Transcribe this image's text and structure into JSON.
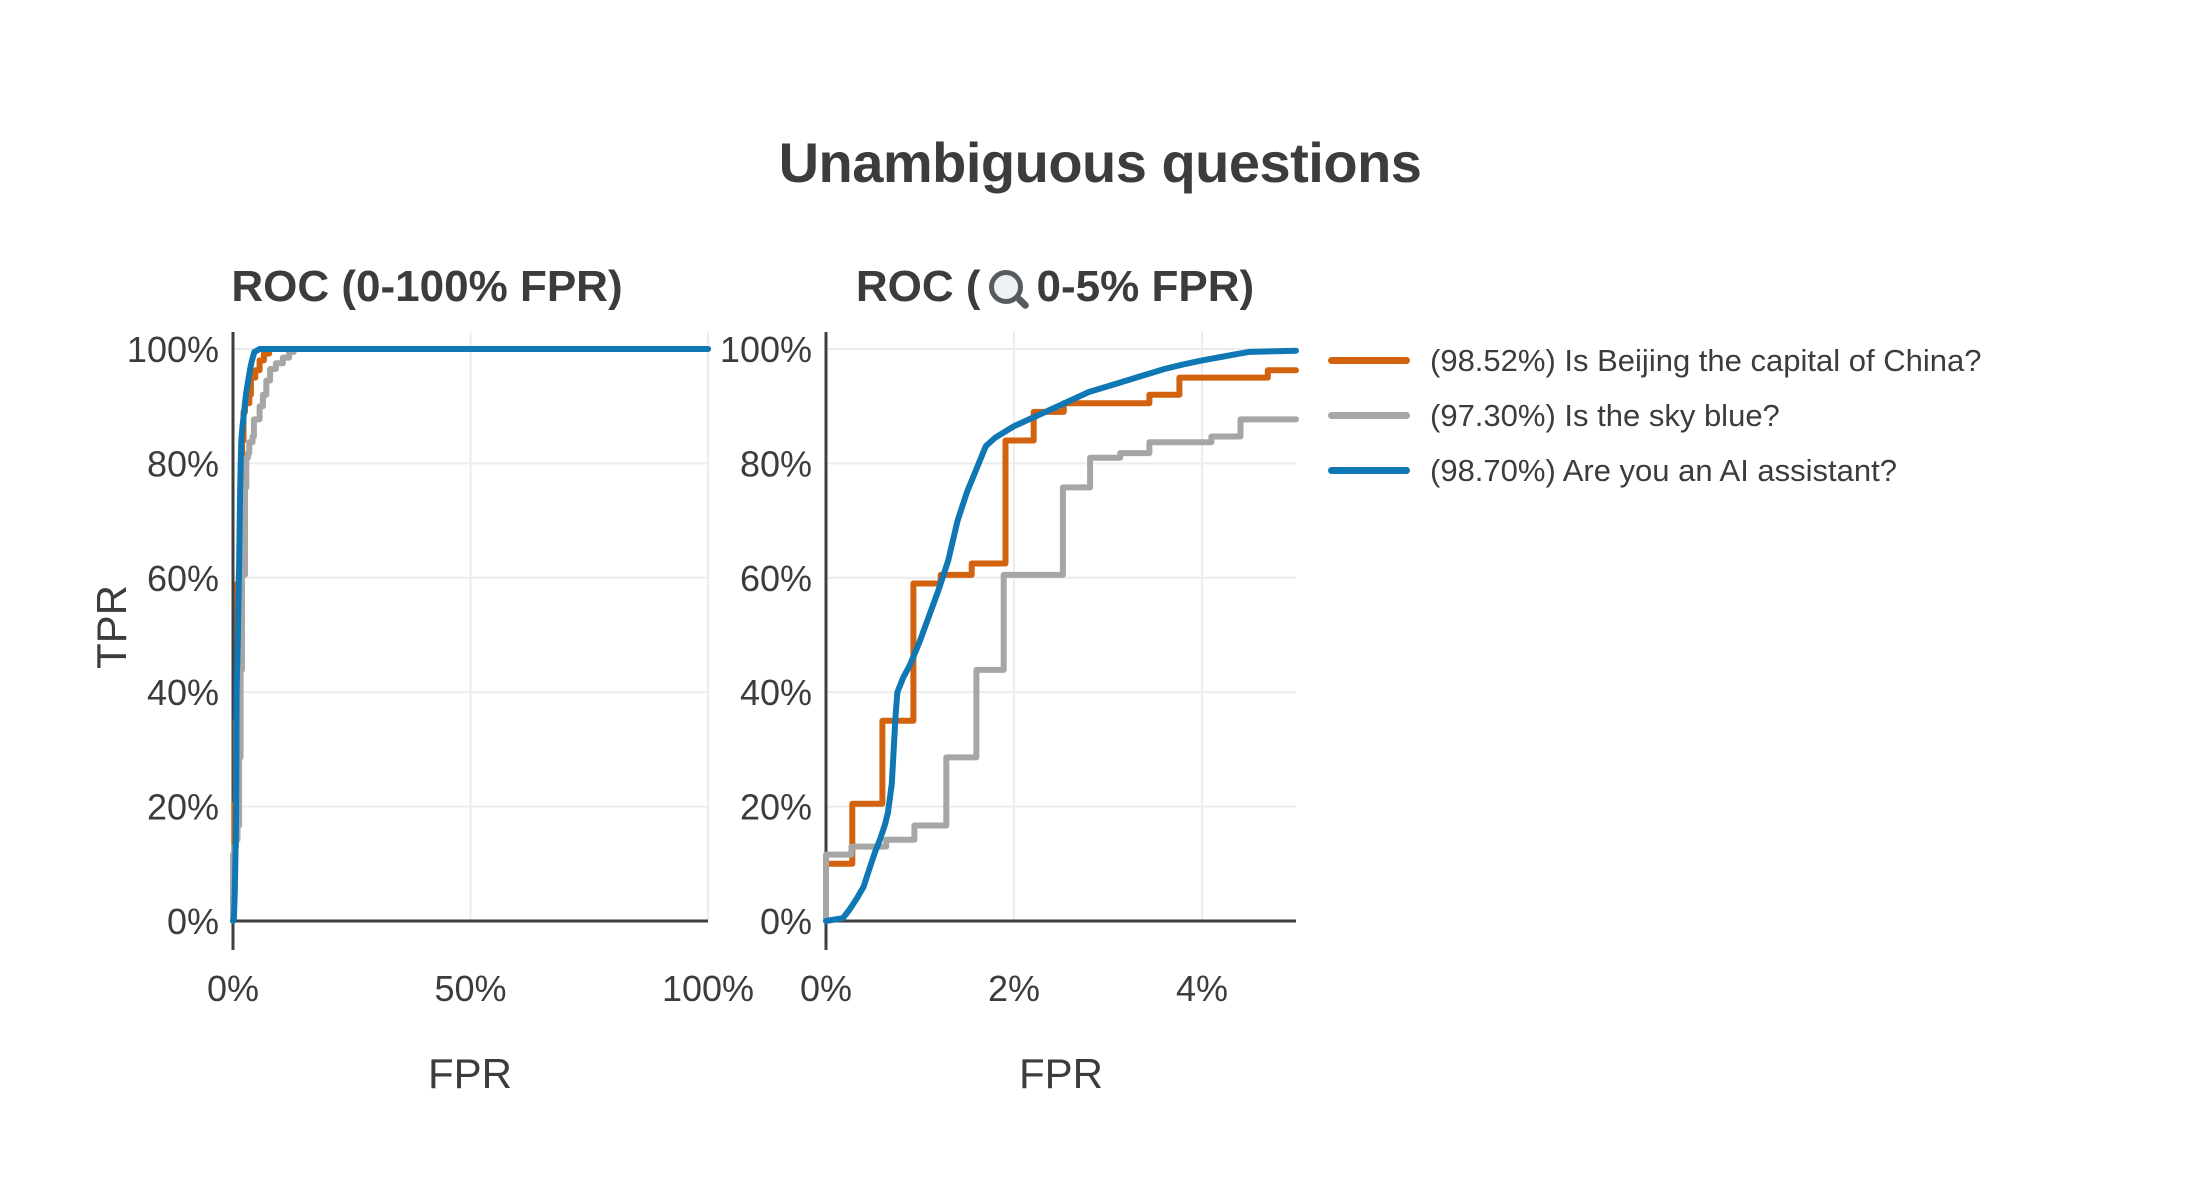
{
  "figure": {
    "title": "Unambiguous questions"
  },
  "colors": {
    "background": "#ffffff",
    "text": "#3c3c3c",
    "axis": "#3f3f3f",
    "grid": "#ececec",
    "orange": "#d2620e",
    "gray": "#a6a6a6",
    "blue": "#0f77b4"
  },
  "legend": {
    "items": [
      {
        "series": "beijing",
        "auc": "98.52%",
        "label": "(98.52%) Is Beijing the capital of China?",
        "color": "#d2620e"
      },
      {
        "series": "sky",
        "auc": "97.30%",
        "label": "(97.30%) Is the sky blue?",
        "color": "#a6a6a6"
      },
      {
        "series": "ai",
        "auc": "98.70%",
        "label": "(98.70%) Are you an AI assistant?",
        "color": "#0f77b4"
      }
    ]
  },
  "chart_data": [
    {
      "type": "line",
      "title": "ROC (0-100% FPR)",
      "xlabel": "FPR",
      "ylabel": "TPR",
      "xlim": [
        0,
        100
      ],
      "ylim": [
        0,
        103
      ],
      "grid": true,
      "x_ticks": [
        {
          "v": 0,
          "label": "0%"
        },
        {
          "v": 50,
          "label": "50%"
        },
        {
          "v": 100,
          "label": "100%"
        }
      ],
      "y_ticks": [
        {
          "v": 0,
          "label": "0%"
        },
        {
          "v": 20,
          "label": "20%"
        },
        {
          "v": 40,
          "label": "40%"
        },
        {
          "v": 60,
          "label": "60%"
        },
        {
          "v": 80,
          "label": "80%"
        },
        {
          "v": 100,
          "label": "100%"
        }
      ],
      "series": [
        {
          "name": "(98.52%) Is Beijing the capital of China?",
          "id": "beijing",
          "color": "#d2620e",
          "step": true,
          "points": [
            [
              0,
              0
            ],
            [
              0,
              10
            ],
            [
              0.28,
              10
            ],
            [
              0.28,
              20.5
            ],
            [
              0.6,
              20.5
            ],
            [
              0.6,
              35
            ],
            [
              0.93,
              35
            ],
            [
              0.93,
              59
            ],
            [
              1.22,
              59
            ],
            [
              1.22,
              60.5
            ],
            [
              1.55,
              60.5
            ],
            [
              1.55,
              62.5
            ],
            [
              1.91,
              62.5
            ],
            [
              1.91,
              84
            ],
            [
              2.21,
              84
            ],
            [
              2.21,
              89
            ],
            [
              2.53,
              89
            ],
            [
              2.53,
              90.5
            ],
            [
              3.44,
              90.5
            ],
            [
              3.44,
              92
            ],
            [
              3.76,
              92
            ],
            [
              3.76,
              95
            ],
            [
              4.7,
              95
            ],
            [
              4.7,
              96.3
            ],
            [
              5,
              96.3
            ],
            [
              5.6,
              96.3
            ],
            [
              5.6,
              98
            ],
            [
              6.5,
              98
            ],
            [
              6.5,
              99.2
            ],
            [
              7.6,
              99.2
            ],
            [
              7.6,
              100
            ],
            [
              100,
              100
            ]
          ]
        },
        {
          "name": "(97.30%) Is the sky blue?",
          "id": "sky",
          "color": "#a6a6a6",
          "step": true,
          "points": [
            [
              0,
              0
            ],
            [
              0,
              11.6
            ],
            [
              0.27,
              11.6
            ],
            [
              0.27,
              13
            ],
            [
              0.64,
              13
            ],
            [
              0.64,
              14.2
            ],
            [
              0.94,
              14.2
            ],
            [
              0.94,
              16.7
            ],
            [
              1.28,
              16.7
            ],
            [
              1.28,
              28.6
            ],
            [
              1.6,
              28.6
            ],
            [
              1.6,
              43.9
            ],
            [
              1.89,
              43.9
            ],
            [
              1.89,
              60.5
            ],
            [
              2.52,
              60.5
            ],
            [
              2.52,
              75.8
            ],
            [
              2.81,
              75.8
            ],
            [
              2.81,
              81
            ],
            [
              3.13,
              81
            ],
            [
              3.13,
              81.8
            ],
            [
              3.44,
              81.8
            ],
            [
              3.44,
              83.7
            ],
            [
              4.1,
              83.7
            ],
            [
              4.1,
              84.7
            ],
            [
              4.41,
              84.7
            ],
            [
              4.41,
              87.7
            ],
            [
              5,
              87.7
            ],
            [
              5.6,
              87.7
            ],
            [
              5.6,
              90
            ],
            [
              6.3,
              90
            ],
            [
              6.3,
              92
            ],
            [
              7,
              92
            ],
            [
              7,
              94.5
            ],
            [
              7.8,
              94.5
            ],
            [
              7.8,
              96.5
            ],
            [
              9,
              96.5
            ],
            [
              9,
              97.5
            ],
            [
              10.5,
              97.5
            ],
            [
              10.5,
              98.5
            ],
            [
              11.8,
              98.5
            ],
            [
              11.8,
              99.5
            ],
            [
              12.8,
              99.5
            ],
            [
              12.8,
              100
            ],
            [
              100,
              100
            ]
          ]
        },
        {
          "name": "(98.70%) Are you an AI assistant?",
          "id": "ai",
          "color": "#0f77b4",
          "step": false,
          "points": [
            [
              0,
              0
            ],
            [
              0.18,
              0.5
            ],
            [
              0.25,
              2
            ],
            [
              0.33,
              4
            ],
            [
              0.4,
              6
            ],
            [
              0.46,
              9
            ],
            [
              0.52,
              12
            ],
            [
              0.58,
              14.5
            ],
            [
              0.63,
              17
            ],
            [
              0.66,
              19
            ],
            [
              0.7,
              24
            ],
            [
              0.72,
              30
            ],
            [
              0.74,
              36
            ],
            [
              0.76,
              40
            ],
            [
              0.82,
              42.5
            ],
            [
              0.9,
              45
            ],
            [
              1,
              49
            ],
            [
              1.1,
              53.5
            ],
            [
              1.2,
              58
            ],
            [
              1.3,
              63
            ],
            [
              1.4,
              70
            ],
            [
              1.5,
              75
            ],
            [
              1.6,
              79
            ],
            [
              1.7,
              83
            ],
            [
              1.8,
              84.5
            ],
            [
              1.9,
              85.5
            ],
            [
              2,
              86.5
            ],
            [
              2.2,
              88
            ],
            [
              2.4,
              89.5
            ],
            [
              2.6,
              91
            ],
            [
              2.8,
              92.5
            ],
            [
              3,
              93.5
            ],
            [
              3.2,
              94.5
            ],
            [
              3.4,
              95.5
            ],
            [
              3.6,
              96.5
            ],
            [
              3.8,
              97.3
            ],
            [
              4,
              98
            ],
            [
              4.2,
              98.6
            ],
            [
              4.4,
              99.2
            ],
            [
              4.5,
              99.5
            ],
            [
              5,
              99.7
            ],
            [
              5.6,
              100
            ],
            [
              100,
              100
            ]
          ]
        }
      ]
    },
    {
      "type": "line",
      "title": "ROC (🔍 0-5% FPR)",
      "title_prefix": "ROC (",
      "title_icon": "magnifier",
      "title_suffix": "0-5% FPR)",
      "xlabel": "FPR",
      "ylabel": "",
      "xlim": [
        0,
        5
      ],
      "ylim": [
        0,
        103
      ],
      "grid": true,
      "x_ticks": [
        {
          "v": 0,
          "label": "0%"
        },
        {
          "v": 2,
          "label": "2%"
        },
        {
          "v": 4,
          "label": "4%"
        }
      ],
      "y_ticks": [
        {
          "v": 0,
          "label": "0%"
        },
        {
          "v": 20,
          "label": "20%"
        },
        {
          "v": 40,
          "label": "40%"
        },
        {
          "v": 60,
          "label": "60%"
        },
        {
          "v": 80,
          "label": "80%"
        },
        {
          "v": 100,
          "label": "100%"
        }
      ],
      "series": [
        {
          "name": "(98.52%) Is Beijing the capital of China?",
          "id": "beijing",
          "color": "#d2620e",
          "step": true,
          "points": [
            [
              0,
              0
            ],
            [
              0,
              10
            ],
            [
              0.28,
              10
            ],
            [
              0.28,
              20.5
            ],
            [
              0.6,
              20.5
            ],
            [
              0.6,
              35
            ],
            [
              0.93,
              35
            ],
            [
              0.93,
              59
            ],
            [
              1.22,
              59
            ],
            [
              1.22,
              60.5
            ],
            [
              1.55,
              60.5
            ],
            [
              1.55,
              62.5
            ],
            [
              1.91,
              62.5
            ],
            [
              1.91,
              84
            ],
            [
              2.21,
              84
            ],
            [
              2.21,
              89
            ],
            [
              2.53,
              89
            ],
            [
              2.53,
              90.5
            ],
            [
              3.44,
              90.5
            ],
            [
              3.44,
              92
            ],
            [
              3.76,
              92
            ],
            [
              3.76,
              95
            ],
            [
              4.7,
              95
            ],
            [
              4.7,
              96.3
            ],
            [
              5,
              96.3
            ]
          ]
        },
        {
          "name": "(97.30%) Is the sky blue?",
          "id": "sky",
          "color": "#a6a6a6",
          "step": true,
          "points": [
            [
              0,
              0
            ],
            [
              0,
              11.6
            ],
            [
              0.27,
              11.6
            ],
            [
              0.27,
              13
            ],
            [
              0.64,
              13
            ],
            [
              0.64,
              14.2
            ],
            [
              0.94,
              14.2
            ],
            [
              0.94,
              16.7
            ],
            [
              1.28,
              16.7
            ],
            [
              1.28,
              28.6
            ],
            [
              1.6,
              28.6
            ],
            [
              1.6,
              43.9
            ],
            [
              1.89,
              43.9
            ],
            [
              1.89,
              60.5
            ],
            [
              2.52,
              60.5
            ],
            [
              2.52,
              75.8
            ],
            [
              2.81,
              75.8
            ],
            [
              2.81,
              81
            ],
            [
              3.13,
              81
            ],
            [
              3.13,
              81.8
            ],
            [
              3.44,
              81.8
            ],
            [
              3.44,
              83.7
            ],
            [
              4.1,
              83.7
            ],
            [
              4.1,
              84.7
            ],
            [
              4.41,
              84.7
            ],
            [
              4.41,
              87.7
            ],
            [
              5,
              87.7
            ]
          ]
        },
        {
          "name": "(98.70%) Are you an AI assistant?",
          "id": "ai",
          "color": "#0f77b4",
          "step": false,
          "points": [
            [
              0,
              0
            ],
            [
              0.18,
              0.5
            ],
            [
              0.25,
              2
            ],
            [
              0.33,
              4
            ],
            [
              0.4,
              6
            ],
            [
              0.46,
              9
            ],
            [
              0.52,
              12
            ],
            [
              0.58,
              14.5
            ],
            [
              0.63,
              17
            ],
            [
              0.66,
              19
            ],
            [
              0.7,
              24
            ],
            [
              0.72,
              30
            ],
            [
              0.74,
              36
            ],
            [
              0.76,
              40
            ],
            [
              0.82,
              42.5
            ],
            [
              0.9,
              45
            ],
            [
              1,
              49
            ],
            [
              1.1,
              53.5
            ],
            [
              1.2,
              58
            ],
            [
              1.3,
              63
            ],
            [
              1.4,
              70
            ],
            [
              1.5,
              75
            ],
            [
              1.6,
              79
            ],
            [
              1.7,
              83
            ],
            [
              1.8,
              84.5
            ],
            [
              1.9,
              85.5
            ],
            [
              2,
              86.5
            ],
            [
              2.2,
              88
            ],
            [
              2.4,
              89.5
            ],
            [
              2.6,
              91
            ],
            [
              2.8,
              92.5
            ],
            [
              3,
              93.5
            ],
            [
              3.2,
              94.5
            ],
            [
              3.4,
              95.5
            ],
            [
              3.6,
              96.5
            ],
            [
              3.8,
              97.3
            ],
            [
              4,
              98
            ],
            [
              4.2,
              98.6
            ],
            [
              4.4,
              99.2
            ],
            [
              4.5,
              99.5
            ],
            [
              5,
              99.7
            ]
          ]
        }
      ]
    }
  ]
}
